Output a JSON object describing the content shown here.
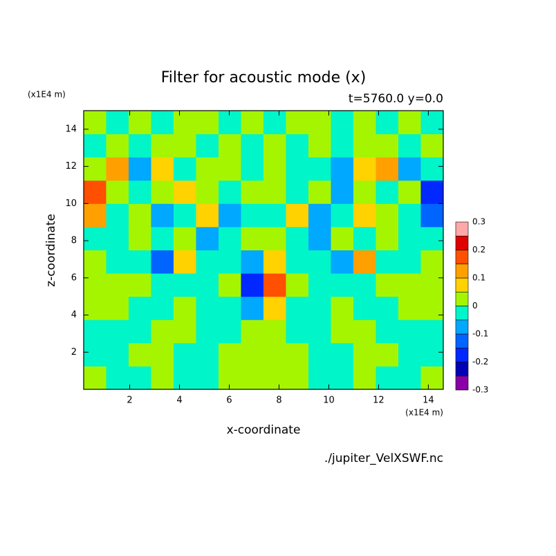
{
  "chart_data": {
    "type": "contour",
    "title": "Filter for acoustic mode (x)",
    "subtitle": "t=5760.0 y=0.0",
    "x_label": "x-coordinate",
    "y_label": "z-coordinate",
    "x_unit": "(x1E4 m)",
    "y_unit": "(x1E4 m)",
    "source": "./jupiter_VelXSWF.nc",
    "xlim": [
      0.15,
      14.6
    ],
    "ylim": [
      0,
      15
    ],
    "xticks": [
      2,
      4,
      6,
      8,
      10,
      12,
      14
    ],
    "yticks": [
      2,
      4,
      6,
      8,
      10,
      12,
      14
    ],
    "levels": [
      -0.3,
      -0.25,
      -0.2,
      -0.15,
      -0.1,
      -0.05,
      0,
      0.05,
      0.1,
      0.15,
      0.2,
      0.25,
      0.3
    ],
    "colors": [
      "#8a00a8",
      "#0000b4",
      "#0028ff",
      "#0064ff",
      "#00a8ff",
      "#00f5c8",
      "#a5f500",
      "#ffd200",
      "#ffa000",
      "#ff5000",
      "#e00000",
      "#ffa8a8"
    ],
    "colorbar_ticks": [
      -0.3,
      -0.2,
      -0.1,
      0,
      0.1,
      0.2,
      0.3
    ],
    "z": [
      [
        0.02,
        -0.02,
        -0.02,
        0.02,
        -0.02,
        -0.02,
        0.02,
        0.02,
        0.02,
        0.02,
        -0.02,
        -0.02,
        0.02,
        -0.02,
        -0.02,
        0.02
      ],
      [
        -0.02,
        -0.02,
        0.02,
        0.02,
        -0.02,
        -0.02,
        0.02,
        0.02,
        0.02,
        0.02,
        -0.02,
        -0.02,
        0.02,
        0.02,
        -0.02,
        -0.02
      ],
      [
        -0.02,
        -0.02,
        -0.02,
        0.02,
        0.02,
        -0.02,
        -0.02,
        0.02,
        0.02,
        -0.02,
        -0.02,
        0.02,
        0.02,
        -0.02,
        -0.02,
        -0.02
      ],
      [
        0.02,
        0.02,
        -0.02,
        -0.02,
        0.02,
        -0.02,
        -0.02,
        -0.07,
        0.07,
        -0.02,
        -0.02,
        0.02,
        -0.02,
        -0.02,
        0.02,
        0.02
      ],
      [
        0.02,
        0.02,
        0.02,
        -0.02,
        -0.02,
        -0.02,
        0.02,
        -0.17,
        0.17,
        0.02,
        -0.02,
        -0.02,
        -0.02,
        0.02,
        0.02,
        0.02
      ],
      [
        0.02,
        -0.02,
        -0.02,
        -0.12,
        0.07,
        -0.02,
        -0.02,
        -0.07,
        0.07,
        -0.02,
        -0.02,
        -0.07,
        0.12,
        -0.02,
        -0.02,
        0.02
      ],
      [
        -0.02,
        -0.02,
        0.02,
        -0.02,
        0.02,
        -0.07,
        -0.02,
        0.02,
        0.02,
        -0.02,
        -0.07,
        0.02,
        -0.02,
        0.02,
        -0.02,
        -0.02
      ],
      [
        0.12,
        -0.02,
        0.02,
        -0.07,
        -0.02,
        0.07,
        -0.07,
        -0.02,
        -0.02,
        0.07,
        -0.07,
        -0.02,
        0.07,
        0.02,
        -0.02,
        -0.12
      ],
      [
        0.17,
        0.02,
        -0.02,
        0.02,
        0.07,
        0.02,
        -0.02,
        0.02,
        0.02,
        -0.02,
        0.02,
        -0.07,
        0.02,
        -0.02,
        0.02,
        -0.17
      ],
      [
        0.02,
        0.12,
        -0.07,
        0.07,
        -0.02,
        0.02,
        0.02,
        -0.02,
        0.02,
        -0.02,
        -0.02,
        -0.07,
        0.07,
        0.12,
        -0.07,
        -0.02
      ],
      [
        -0.02,
        0.02,
        -0.02,
        0.02,
        0.02,
        -0.02,
        0.02,
        -0.02,
        0.02,
        -0.02,
        0.02,
        -0.02,
        0.02,
        0.02,
        -0.02,
        0.02
      ],
      [
        0.02,
        -0.02,
        0.02,
        -0.02,
        0.02,
        0.02,
        -0.02,
        0.02,
        -0.02,
        0.02,
        0.02,
        -0.02,
        0.02,
        -0.02,
        0.02,
        -0.02
      ]
    ]
  }
}
